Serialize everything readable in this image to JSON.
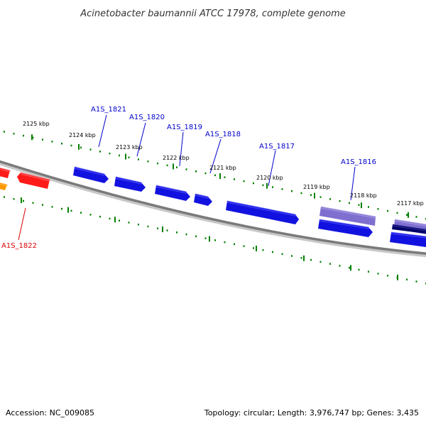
{
  "title": "Acinetobacter baumannii ATCC 17978, complete genome",
  "footer": {
    "accession": "Accession: NC_009085",
    "summary": "Topology: circular; Length: 3,976,747 bp; Genes: 3,435"
  },
  "ticks": [
    "2125 kbp",
    "2124 kbp",
    "2123 kbp",
    "2122 kbp",
    "2121 kbp",
    "2120 kbp",
    "2119 kbp",
    "2118 kbp",
    "2117 kbp"
  ],
  "genes": [
    {
      "id": "A1S_1821",
      "color": "#1a1ad6",
      "strand": "forward"
    },
    {
      "id": "A1S_1820",
      "color": "#1a1ad6",
      "strand": "forward"
    },
    {
      "id": "A1S_1819",
      "color": "#1a1ad6",
      "strand": "forward"
    },
    {
      "id": "A1S_1818",
      "color": "#1a1ad6",
      "strand": "forward"
    },
    {
      "id": "A1S_1817",
      "color": "#1a1ad6",
      "strand": "forward"
    },
    {
      "id": "A1S_1816",
      "color": "#1a1ad6",
      "strand": "forward"
    },
    {
      "id": "A1S_1822",
      "color": "#e01010",
      "strand": "reverse"
    }
  ],
  "colors": {
    "forward_gene": "#1212e0",
    "reverse_gene": "#ff1a1a",
    "orange_gene": "#ff9900",
    "purple_gene": "#7f6fcf",
    "dark_gene": "#000066",
    "backbone": "#808080",
    "ticks": "#008000",
    "forward_label": "#0000cc",
    "reverse_label": "#dd0000"
  }
}
